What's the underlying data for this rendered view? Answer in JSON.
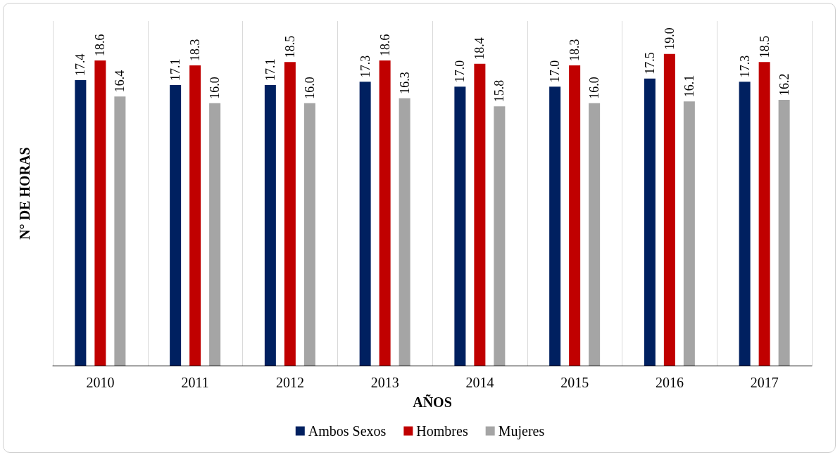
{
  "chart_data": {
    "type": "bar",
    "xlabel": "AÑOS",
    "ylabel": "N° DE HORAS",
    "categories": [
      "2010",
      "2011",
      "2012",
      "2013",
      "2014",
      "2015",
      "2016",
      "2017"
    ],
    "series": [
      {
        "name": "Ambos Sexos",
        "color": "#002060",
        "values": [
          17.4,
          17.1,
          17.1,
          17.3,
          17.0,
          17.0,
          17.5,
          17.3
        ],
        "value_labels": [
          "17.4",
          "17.1",
          "17.1",
          "17.3",
          "17.0",
          "17.0",
          "17.5",
          "17.3"
        ]
      },
      {
        "name": "Hombres",
        "color": "#c00000",
        "values": [
          18.6,
          18.3,
          18.5,
          18.6,
          18.4,
          18.3,
          19.0,
          18.5
        ],
        "value_labels": [
          "18.6",
          "18.3",
          "18.5",
          "18.6",
          "18.4",
          "18.3",
          "19.0",
          "18.5"
        ]
      },
      {
        "name": "Mujeres",
        "color": "#a5a5a5",
        "values": [
          16.4,
          16.0,
          16.0,
          16.3,
          15.8,
          16.0,
          16.1,
          16.2
        ],
        "value_labels": [
          "16.4",
          "16.0",
          "16.0",
          "16.3",
          "15.8",
          "16.0",
          "16.1",
          "16.2"
        ]
      }
    ],
    "grid": "x",
    "legend": "bottom",
    "tick_labels": "x"
  }
}
